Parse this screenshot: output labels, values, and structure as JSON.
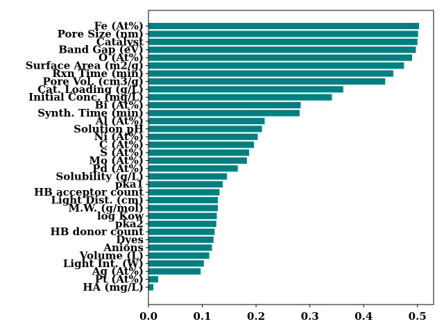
{
  "chart_data": {
    "type": "bar",
    "orientation": "horizontal",
    "title": "",
    "xlabel": "",
    "ylabel": "",
    "xlim": [
      0,
      0.53
    ],
    "grid": false,
    "legend": "none",
    "bar_color": "#008080",
    "x_ticks": [
      {
        "value": 0.0,
        "label": "0.0"
      },
      {
        "value": 0.1,
        "label": "0.1"
      },
      {
        "value": 0.2,
        "label": "0.2"
      },
      {
        "value": 0.3,
        "label": "0.3"
      },
      {
        "value": 0.4,
        "label": "0.4"
      },
      {
        "value": 0.5,
        "label": "0.5"
      }
    ],
    "categories": [
      "Fe (At%)",
      "Pore Size (nm)",
      "Catalyst",
      "Band Gap (eV)",
      "O (At%)",
      "Surface Area (m2/g)",
      "Rxn Time (min)",
      "Pore Vol. (cm3/g)",
      "Cat. Loading (g/L)",
      "Initial Conc. (mg/L)",
      "Bi (At%)",
      "Synth. Time (min)",
      "Al (At%)",
      "Solution pH",
      "Ni (At%)",
      "C (At%)",
      "S (At%)",
      "Mo (At%)",
      "Pd (At%)",
      "Solubility (g/L)",
      "pka1",
      "HB acceptor count",
      "Light Dist. (cm)",
      "M.W. (g/mol)",
      "log Kow",
      "pka2",
      "HB donor count",
      "Dyes",
      "Anions",
      "Volume (L)",
      "Light Int. (W)",
      "Ag (At%)",
      "Pt (At%)",
      "HA (mg/L)"
    ],
    "values": [
      0.503,
      0.501,
      0.5,
      0.497,
      0.49,
      0.475,
      0.455,
      0.44,
      0.362,
      0.341,
      0.283,
      0.281,
      0.216,
      0.211,
      0.203,
      0.196,
      0.187,
      0.183,
      0.166,
      0.146,
      0.138,
      0.132,
      0.129,
      0.129,
      0.127,
      0.126,
      0.123,
      0.121,
      0.118,
      0.113,
      0.103,
      0.097,
      0.018,
      0.009
    ]
  }
}
